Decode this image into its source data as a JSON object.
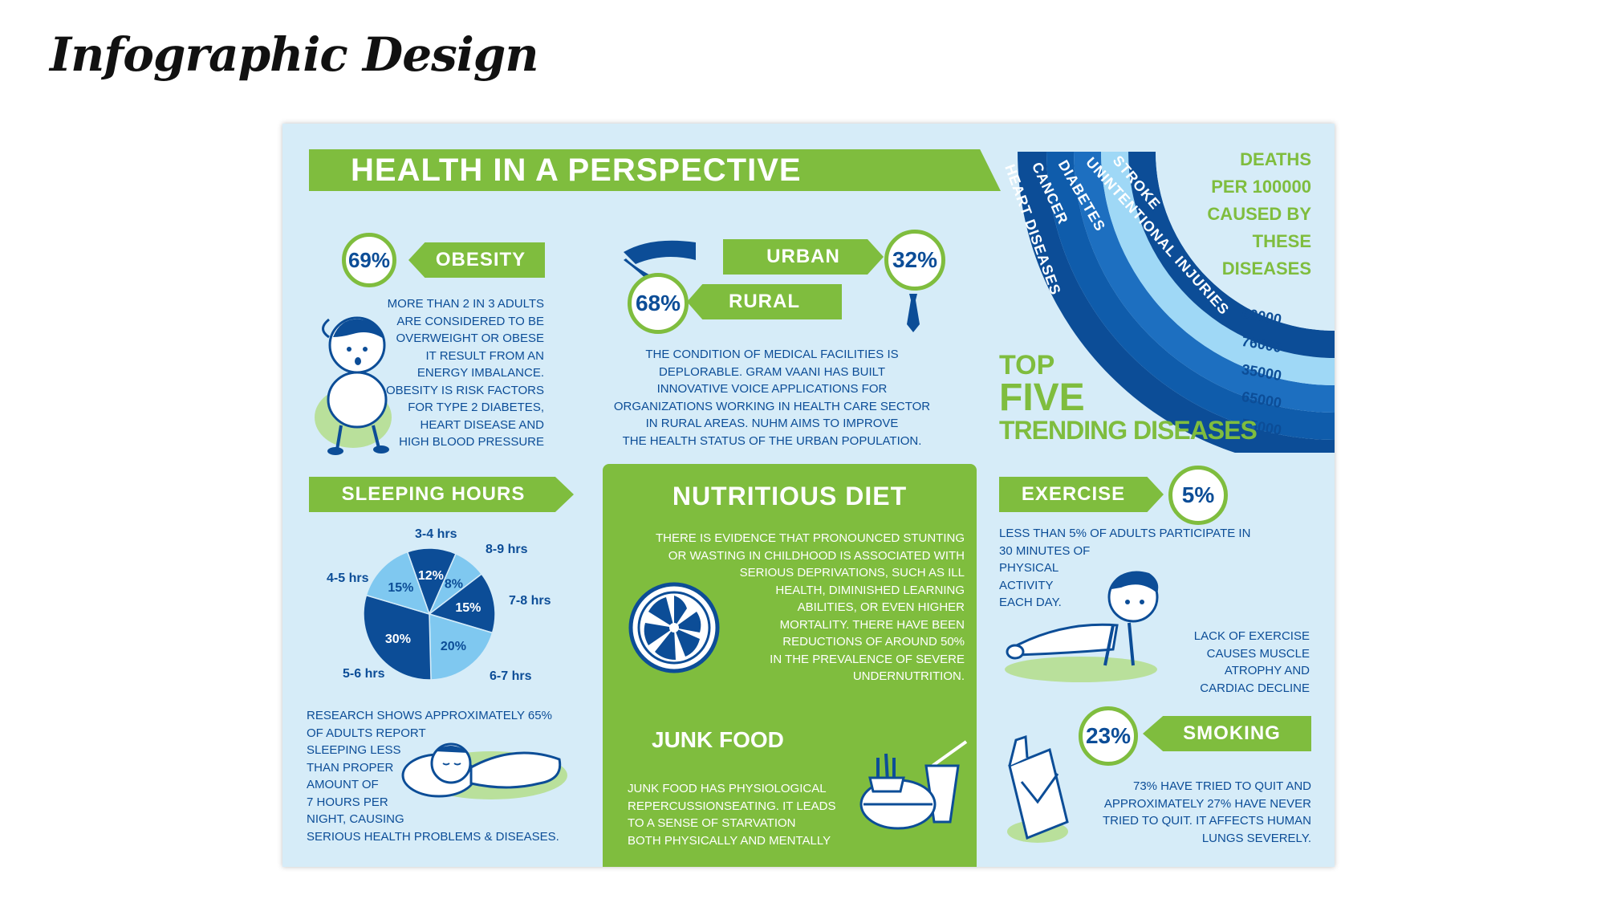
{
  "page_title": "Infographic Design",
  "header": {
    "title": "HEALTH IN A PERSPECTIVE"
  },
  "obesity": {
    "percent": "69%",
    "label": "OBESITY",
    "lines": [
      "MORE THAN 2 IN 3 ADULTS",
      "ARE CONSIDERED TO BE",
      "OVERWEIGHT OR OBESE",
      "IT RESULT FROM AN",
      "ENERGY IMBALANCE.",
      "OBESITY IS RISK FACTORS",
      "FOR TYPE 2 DIABETES,",
      "HEART DISEASE AND",
      "HIGH BLOOD PRESSURE"
    ]
  },
  "urban_rural": {
    "urban_label": "URBAN",
    "urban_percent": "32%",
    "rural_label": "RURAL",
    "rural_percent": "68%",
    "lines": [
      "THE CONDITION OF MEDICAL FACILITIES IS",
      "DEPLORABLE. GRAM VAANI HAS BUILT",
      "INNOVATIVE VOICE APPLICATIONS FOR",
      "ORGANIZATIONS WORKING IN HEALTH CARE SECTOR",
      "IN RURAL AREAS. NUHM AIMS TO IMPROVE",
      "THE HEALTH STATUS OF THE URBAN POPULATION."
    ]
  },
  "diseases": {
    "caption": [
      "DEATHS",
      "PER 100000",
      "CAUSED BY THESE",
      "DISEASES"
    ],
    "title_top": "TOP",
    "title_mid": "FIVE",
    "title_bottom": "TRENDING DISEASES",
    "names": [
      "HEART DISEASES",
      "CANCER",
      "DIABETES",
      "UNINTENTIONAL INJURIES",
      "STROKE"
    ],
    "values": [
      "50000",
      "76000",
      "35000",
      "65000",
      "75000"
    ],
    "colors": [
      "#0c4d97",
      "#0f5cab",
      "#1d6fc0",
      "#9fd8f6",
      "#0c4d97"
    ]
  },
  "sleeping": {
    "label": "SLEEPING HOURS",
    "lines": [
      "RESEARCH SHOWS APPROXIMATELY 65%",
      "OF ADULTS REPORT",
      "SLEEPING LESS",
      "THAN PROPER",
      "AMOUNT OF",
      "7 HOURS PER",
      "NIGHT, CAUSING",
      "SERIOUS HEALTH PROBLEMS & DISEASES."
    ]
  },
  "chart_data": {
    "type": "pie",
    "categories": [
      "3-4 hrs",
      "8-9 hrs",
      "7-8 hrs",
      "6-7 hrs",
      "5-6 hrs",
      "4-5 hrs"
    ],
    "values": [
      12,
      8,
      15,
      20,
      30,
      15
    ],
    "value_labels": [
      "12%",
      "8%",
      "15%",
      "20%",
      "30%",
      "15%"
    ],
    "colors": [
      "#0c4d97",
      "#7fc8f0",
      "#0c4d97",
      "#7fc8f0",
      "#0c4d97",
      "#7fc8f0"
    ]
  },
  "nutrition": {
    "title": "NUTRITIOUS DIET",
    "lines": [
      "THERE IS EVIDENCE THAT PRONOUNCED STUNTING",
      "OR WASTING IN CHILDHOOD IS ASSOCIATED WITH",
      "SERIOUS DEPRIVATIONS, SUCH AS ILL",
      "HEALTH, DIMINISHED LEARNING",
      "ABILITIES, OR EVEN HIGHER",
      "MORTALITY. THERE HAVE BEEN",
      "REDUCTIONS OF AROUND 50%",
      "IN THE PREVALENCE OF SEVERE",
      "UNDERNUTRITION."
    ],
    "junk_title": "JUNK FOOD",
    "junk_lines": [
      "JUNK FOOD HAS PHYSIOLOGICAL",
      "REPERCUSSIONSEATING. IT LEADS",
      "TO A SENSE OF STARVATION",
      "BOTH PHYSICALLY AND MENTALLY"
    ]
  },
  "exercise": {
    "label": "EXERCISE",
    "percent": "5%",
    "lines_top": [
      "LESS THAN 5% OF ADULTS PARTICIPATE IN",
      "30 MINUTES OF",
      "PHYSICAL",
      "ACTIVITY",
      "EACH DAY."
    ],
    "lines_bottom": [
      "LACK OF EXERCISE",
      "CAUSES MUSCLE",
      "ATROPHY AND",
      "CARDIAC DECLINE"
    ]
  },
  "smoking": {
    "percent": "23%",
    "label": "SMOKING",
    "lines": [
      "73% HAVE TRIED TO QUIT AND",
      "APPROXIMATELY 27% HAVE NEVER",
      "TRIED TO QUIT. IT AFFECTS HUMAN",
      "LUNGS SEVERELY."
    ]
  }
}
